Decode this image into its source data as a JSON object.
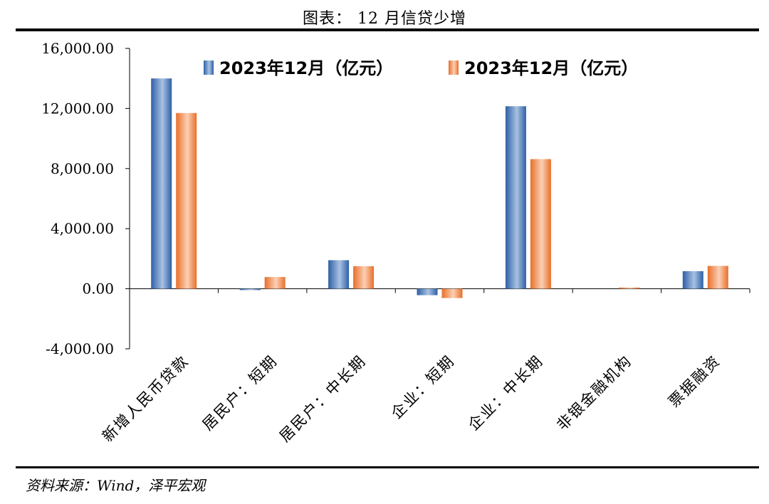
{
  "title": "图表： 12 月信贷少增",
  "source": "资料来源：Wind，泽平宏观",
  "colors": {
    "series1": "#3a6fb5",
    "series2": "#ee7f3a"
  },
  "chart_data": {
    "type": "bar",
    "title": "图表： 12 月信贷少增",
    "categories": [
      "新增人民币贷款",
      "居民户：短期",
      "居民户：中长期",
      "企业：短期",
      "企业：中长期",
      "非银金融机构",
      "票据融资"
    ],
    "series": [
      {
        "name": "2023年12月（亿元）",
        "color": "#3a6fb5",
        "values": [
          14000,
          -90,
          1900,
          -430,
          12150,
          0,
          1170
        ]
      },
      {
        "name": "2023年12月（亿元）",
        "color": "#ee7f3a",
        "values": [
          11700,
          780,
          1500,
          -620,
          8630,
          80,
          1520
        ]
      }
    ],
    "ylim": [
      -4000,
      16000
    ],
    "yticks": [
      -4000,
      0,
      4000,
      8000,
      12000,
      16000
    ],
    "ytick_labels": [
      "-4,000.00",
      "0.00",
      "4,000.00",
      "8,000.00",
      "12,000.00",
      "16,000.00"
    ],
    "xlabel": "",
    "ylabel": "",
    "legend": "top",
    "grid": false
  }
}
